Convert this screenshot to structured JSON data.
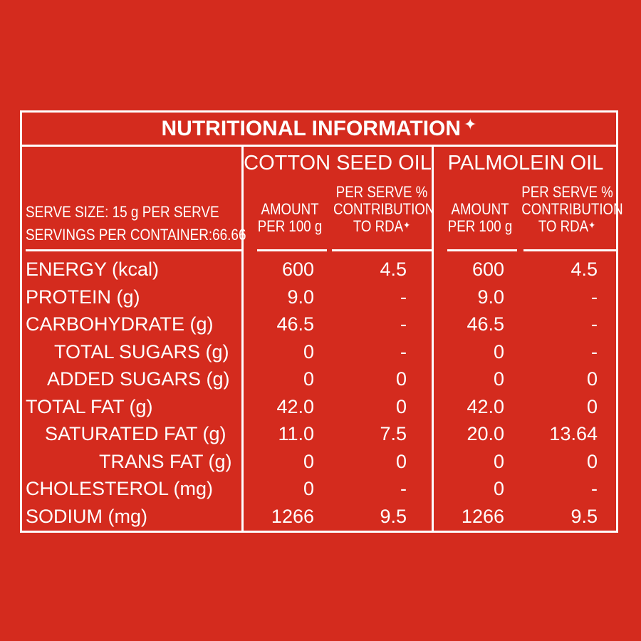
{
  "title": "NUTRITIONAL INFORMATION",
  "title_mark": "✦",
  "serve_size": "SERVE SIZE: 15 g PER SERVE",
  "servings": "SERVINGS PER CONTAINER:66.66",
  "groups": [
    "COTTON SEED OIL",
    "PALMOLEIN OIL"
  ],
  "sub_headers": {
    "amount_line1": "AMOUNT",
    "amount_line2": "PER 100 g",
    "rda_line1": "PER SERVE %",
    "rda_line2": "CONTRIBUTION",
    "rda_line3": "TO RDA",
    "rda_mark": "✦"
  },
  "rows": [
    {
      "label": "ENERGY (kcal)",
      "indent": 0,
      "cs_amount": "600",
      "cs_rda": "4.5",
      "po_amount": "600",
      "po_rda": "4.5"
    },
    {
      "label": "PROTEIN (g)",
      "indent": 0,
      "cs_amount": "9.0",
      "cs_rda": "-",
      "po_amount": "9.0",
      "po_rda": "-"
    },
    {
      "label": "CARBOHYDRATE (g)",
      "indent": 0,
      "cs_amount": "46.5",
      "cs_rda": "-",
      "po_amount": "46.5",
      "po_rda": "-"
    },
    {
      "label": "TOTAL SUGARS (g)",
      "indent": 1,
      "cs_amount": "0",
      "cs_rda": "-",
      "po_amount": "0",
      "po_rda": "-"
    },
    {
      "label": "ADDED SUGARS (g)",
      "indent": 1,
      "cs_amount": "0",
      "cs_rda": "0",
      "po_amount": "0",
      "po_rda": "0"
    },
    {
      "label": "TOTAL FAT (g)",
      "indent": 0,
      "cs_amount": "42.0",
      "cs_rda": "0",
      "po_amount": "42.0",
      "po_rda": "0"
    },
    {
      "label": "SATURATED FAT (g)",
      "indent": 1,
      "cs_amount": "11.0",
      "cs_rda": "7.5",
      "po_amount": "20.0",
      "po_rda": "13.64"
    },
    {
      "label": "TRANS FAT (g)",
      "indent": 1,
      "cs_amount": "0",
      "cs_rda": "0",
      "po_amount": "0",
      "po_rda": "0"
    },
    {
      "label": "CHOLESTEROL (mg)",
      "indent": 0,
      "cs_amount": "0",
      "cs_rda": "-",
      "po_amount": "0",
      "po_rda": "-"
    },
    {
      "label": "SODIUM (mg)",
      "indent": 0,
      "cs_amount": "1266",
      "cs_rda": "9.5",
      "po_amount": "1266",
      "po_rda": "9.5"
    }
  ],
  "colors": {
    "background": "#d42b1e",
    "foreground": "#ffffff"
  }
}
